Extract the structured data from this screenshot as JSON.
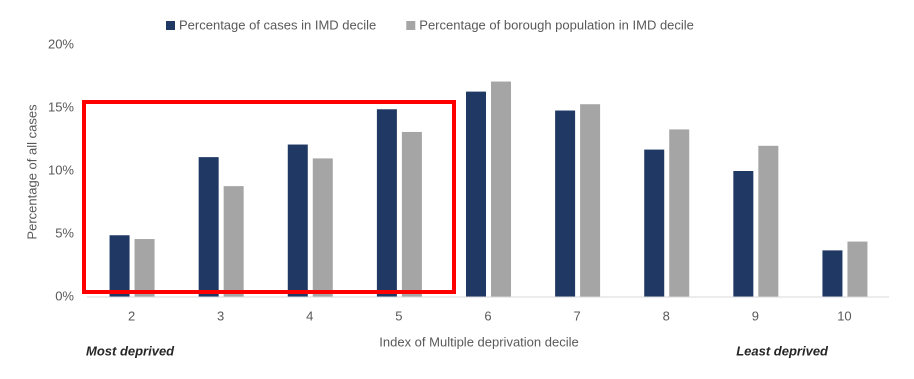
{
  "chart_data": {
    "type": "bar",
    "categories": [
      "2",
      "3",
      "4",
      "5",
      "6",
      "7",
      "8",
      "9",
      "10"
    ],
    "series": [
      {
        "name": "Percentage of cases in IMD decile",
        "color": "#1f3864",
        "values": [
          4.9,
          11.1,
          12.1,
          14.9,
          16.3,
          14.8,
          11.7,
          10.0,
          3.7
        ]
      },
      {
        "name": "Percentage of borough population in IMD decile",
        "color": "#a5a5a5",
        "values": [
          4.6,
          8.8,
          11.0,
          13.1,
          17.1,
          15.3,
          13.3,
          12.0,
          4.4
        ]
      }
    ],
    "ylim": [
      0,
      20
    ],
    "yticks": [
      {
        "value": 0,
        "label": "0%"
      },
      {
        "value": 5,
        "label": "5%"
      },
      {
        "value": 10,
        "label": "10%"
      },
      {
        "value": 15,
        "label": "15%"
      },
      {
        "value": 20,
        "label": "20%"
      }
    ],
    "grid": false,
    "x_label": "Index of Multiple deprivation decile",
    "y_label": "Percentage of all cases",
    "annotations": [
      "Most deprived",
      "Least deprived"
    ]
  }
}
